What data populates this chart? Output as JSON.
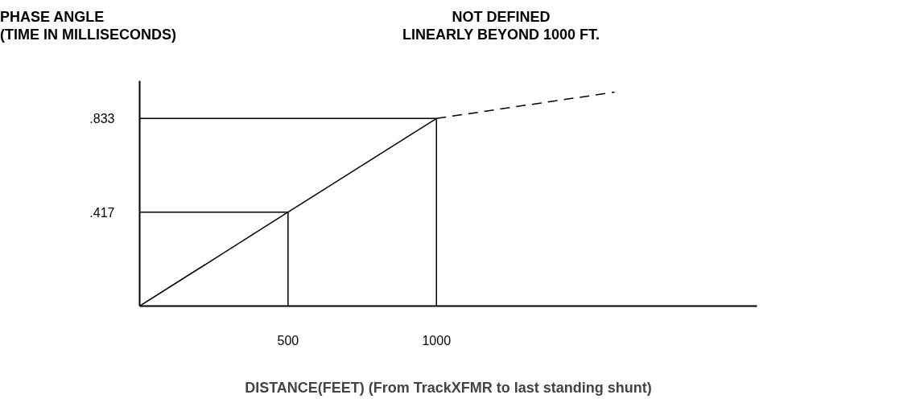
{
  "chart_data": {
    "type": "line",
    "ylabel": "PHASE ANGLE\n(TIME IN MILLISECONDS)",
    "xlabel": "DISTANCE(FEET) (From TrackXFMR to last standing shunt)",
    "annotations": [
      "NOT DEFINED\nLINEARLY BEYOND 1000 FT."
    ],
    "series": [
      {
        "x": [
          0,
          500,
          1000
        ],
        "values": [
          0,
          0.417,
          0.833
        ],
        "color": "#000000",
        "line_style": "solid"
      },
      {
        "x": [
          1000,
          1600
        ],
        "values": [
          0.833,
          0.95
        ],
        "color": "#000000",
        "line_style": "dashed"
      },
      {
        "x": [
          0,
          500,
          500
        ],
        "values": [
          0.417,
          0.417,
          0
        ],
        "color": "#000000",
        "line_style": "solid"
      },
      {
        "x": [
          0,
          1000,
          1000
        ],
        "values": [
          0.833,
          0.833,
          0
        ],
        "color": "#000000",
        "line_style": "solid"
      }
    ],
    "xlim": [
      0,
      2080
    ],
    "ylim": [
      0,
      1.0
    ],
    "xticks": [
      500,
      1000
    ],
    "yticks": [
      {
        "value": 0.417,
        "label": ".417"
      },
      {
        "value": 0.833,
        "label": ".833"
      }
    ],
    "grid": false,
    "marker": "none"
  }
}
